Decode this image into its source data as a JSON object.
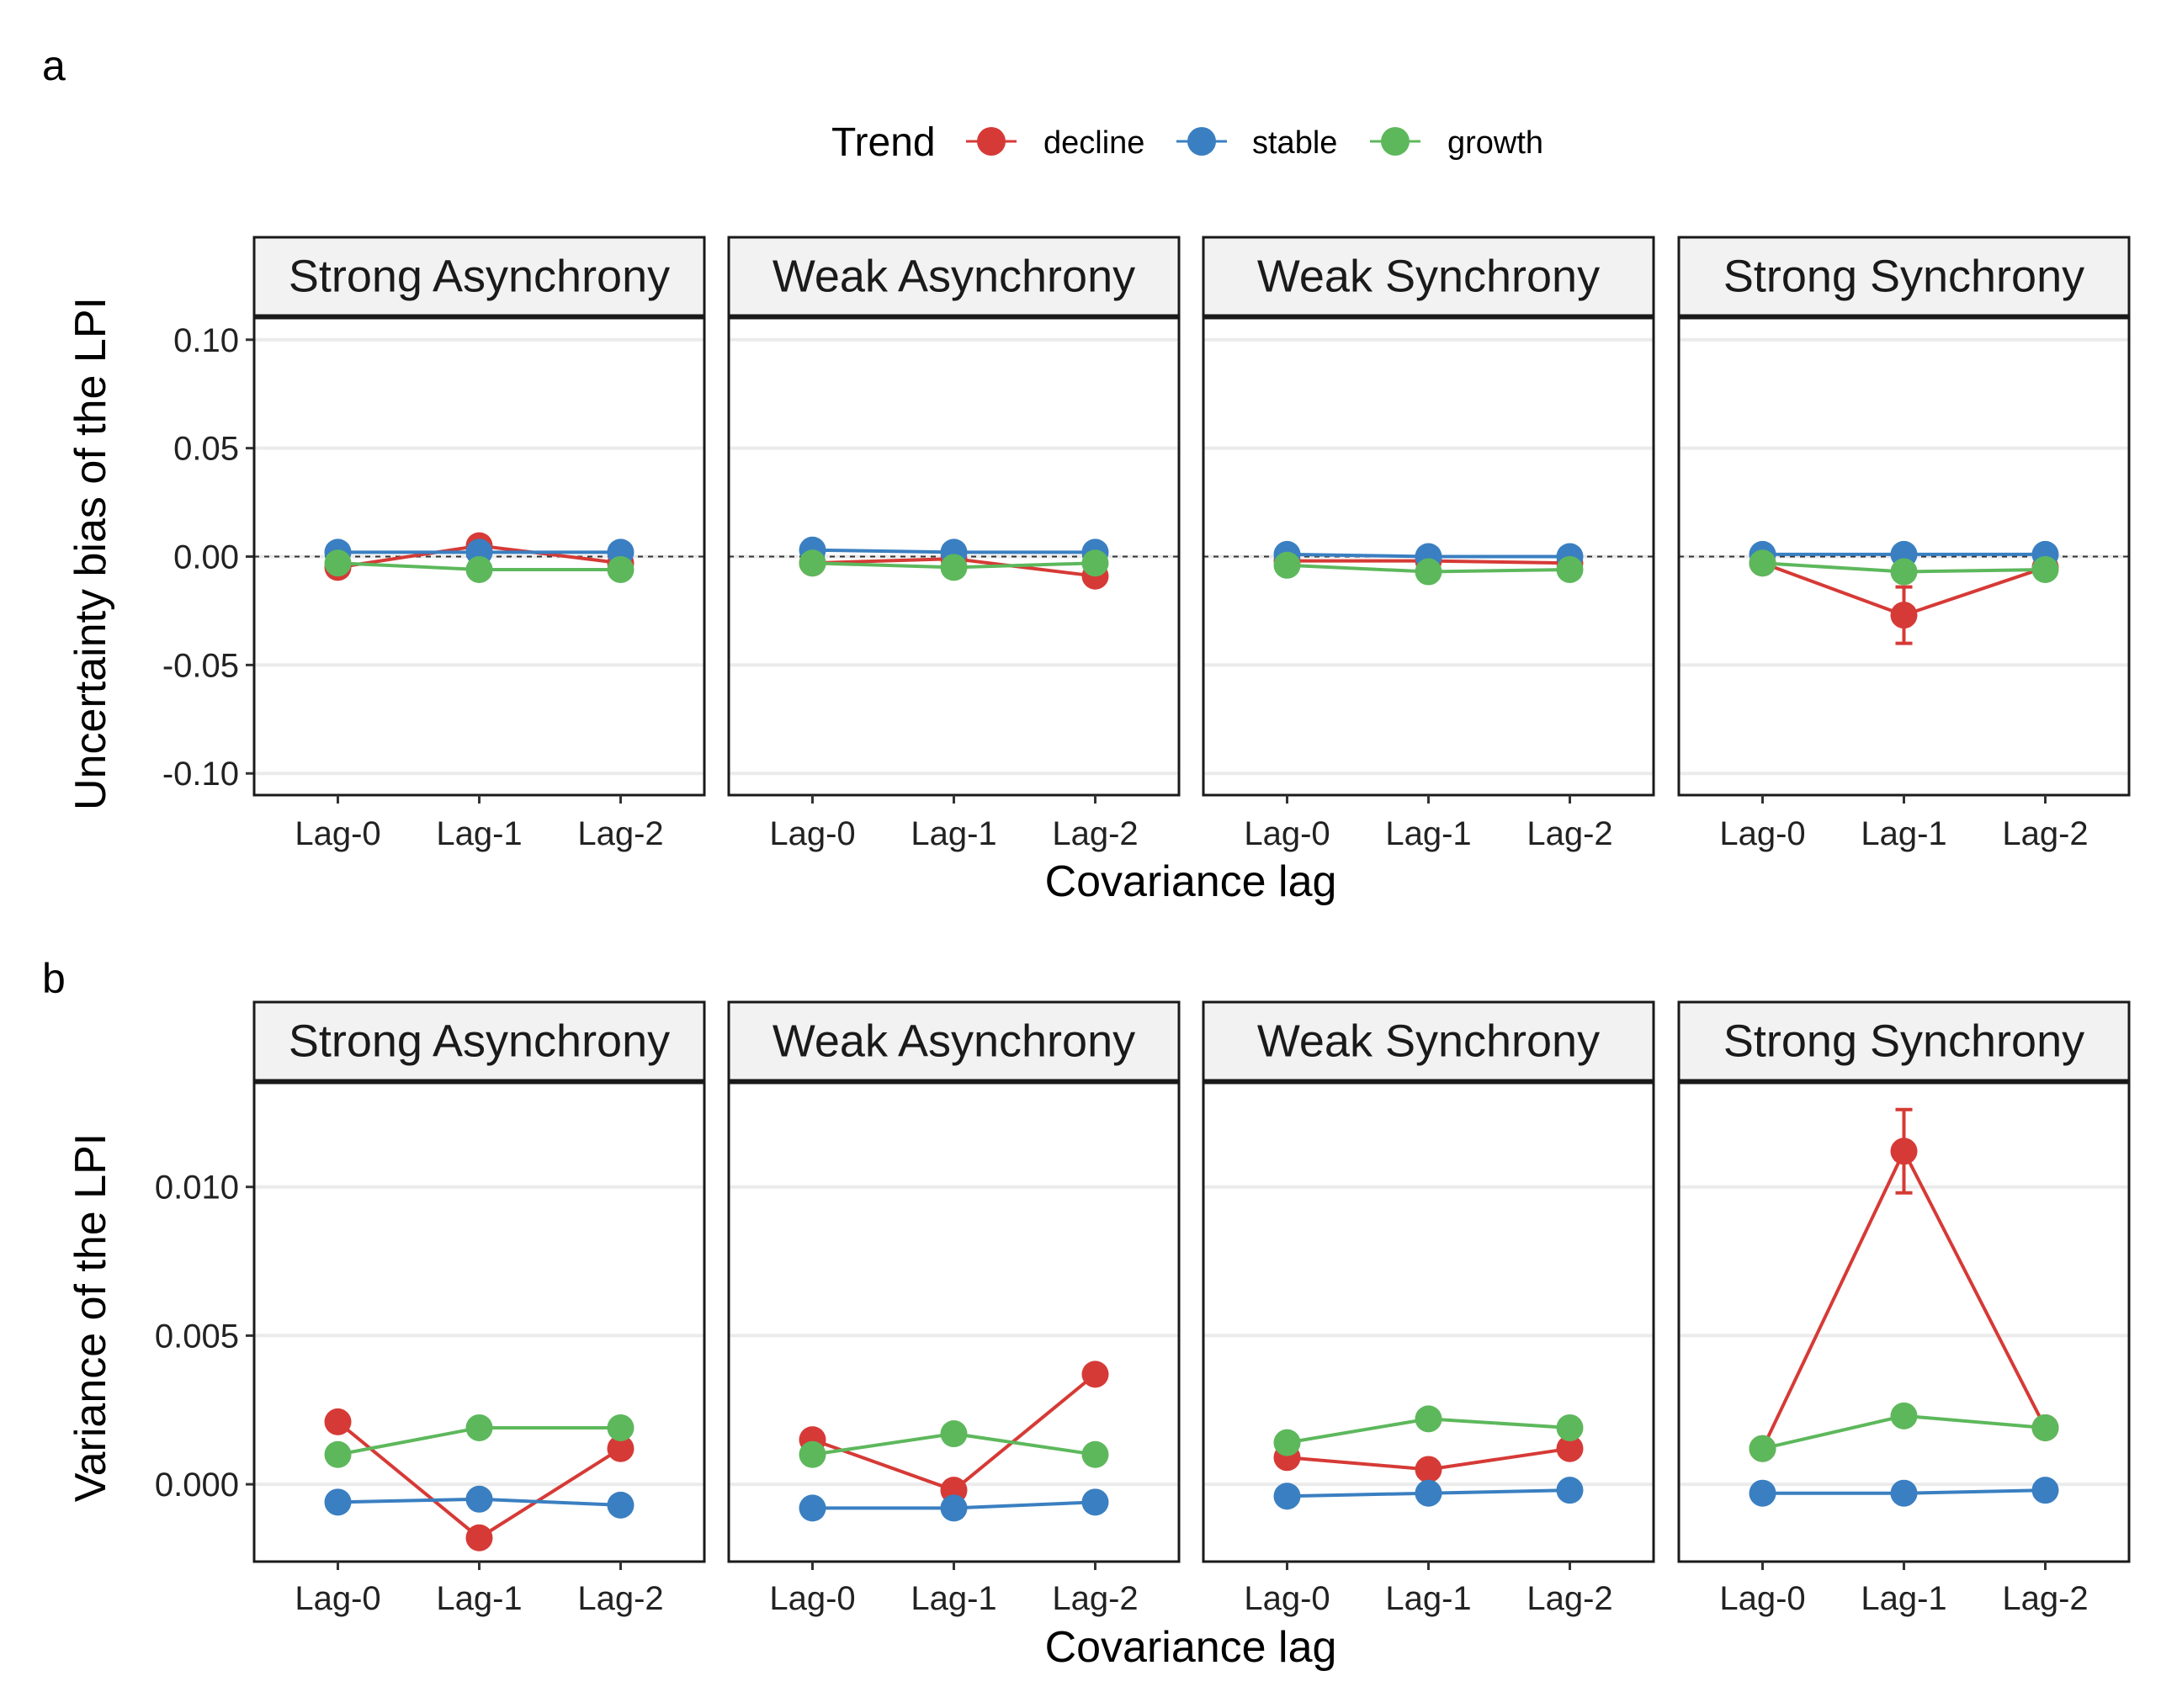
{
  "panels": [
    {
      "letter": "a",
      "ylabel": "Uncertainty bias of the LPI",
      "xlabel": "Covariance lag"
    },
    {
      "letter": "b",
      "ylabel": "Variance of the LPI",
      "xlabel": "Covariance lag"
    }
  ],
  "legend": {
    "title": "Trend",
    "items": [
      {
        "label": "decline",
        "color": "#d63a36"
      },
      {
        "label": "stable",
        "color": "#3a7fc1"
      },
      {
        "label": "growth",
        "color": "#5db85c"
      }
    ]
  },
  "facets": [
    "Strong Asynchrony",
    "Weak Asynchrony",
    "Weak Synchrony",
    "Strong Synchrony"
  ],
  "chart_data": [
    {
      "type": "line",
      "panel": "a",
      "xlabel": "Covariance lag",
      "ylabel": "Uncertainty bias of the LPI",
      "categories": [
        "Lag-0",
        "Lag-1",
        "Lag-2"
      ],
      "ylim": [
        -0.11,
        0.11
      ],
      "yticks": [
        -0.1,
        -0.05,
        0.0,
        0.05,
        0.1
      ],
      "ytick_labels": [
        "-0.10",
        "-0.05",
        "0.00",
        "0.05",
        "0.10"
      ],
      "reference_line": 0,
      "facets": [
        {
          "name": "Strong Asynchrony",
          "series": [
            {
              "name": "decline",
              "values": [
                -0.005,
                0.005,
                -0.003
              ]
            },
            {
              "name": "stable",
              "values": [
                0.002,
                0.002,
                0.002
              ]
            },
            {
              "name": "growth",
              "values": [
                -0.003,
                -0.006,
                -0.006
              ]
            }
          ]
        },
        {
          "name": "Weak Asynchrony",
          "series": [
            {
              "name": "decline",
              "values": [
                -0.003,
                -0.001,
                -0.009
              ]
            },
            {
              "name": "stable",
              "values": [
                0.003,
                0.002,
                0.002
              ]
            },
            {
              "name": "growth",
              "values": [
                -0.003,
                -0.005,
                -0.003
              ]
            }
          ]
        },
        {
          "name": "Weak Synchrony",
          "series": [
            {
              "name": "decline",
              "values": [
                -0.002,
                -0.002,
                -0.003
              ]
            },
            {
              "name": "stable",
              "values": [
                0.001,
                0.0,
                0.0
              ]
            },
            {
              "name": "growth",
              "values": [
                -0.004,
                -0.007,
                -0.006
              ]
            }
          ]
        },
        {
          "name": "Strong Synchrony",
          "series": [
            {
              "name": "decline",
              "values": [
                -0.003,
                -0.027,
                -0.005
              ],
              "error": [
                0,
                0.013,
                0
              ]
            },
            {
              "name": "stable",
              "values": [
                0.001,
                0.001,
                0.001
              ]
            },
            {
              "name": "growth",
              "values": [
                -0.003,
                -0.007,
                -0.006
              ]
            }
          ]
        }
      ]
    },
    {
      "type": "line",
      "panel": "b",
      "xlabel": "Covariance lag",
      "ylabel": "Variance of the LPI",
      "categories": [
        "Lag-0",
        "Lag-1",
        "Lag-2"
      ],
      "ylim": [
        -0.0026,
        0.0135
      ],
      "yticks": [
        0.0,
        0.005,
        0.01
      ],
      "ytick_labels": [
        "0.000",
        "0.005",
        "0.010"
      ],
      "facets": [
        {
          "name": "Strong Asynchrony",
          "series": [
            {
              "name": "decline",
              "values": [
                0.0021,
                -0.0018,
                0.0012
              ]
            },
            {
              "name": "stable",
              "values": [
                -0.0006,
                -0.0005,
                -0.0007
              ]
            },
            {
              "name": "growth",
              "values": [
                0.001,
                0.0019,
                0.0019
              ]
            }
          ]
        },
        {
          "name": "Weak Asynchrony",
          "series": [
            {
              "name": "decline",
              "values": [
                0.0015,
                -0.0002,
                0.0037
              ]
            },
            {
              "name": "stable",
              "values": [
                -0.0008,
                -0.0008,
                -0.0006
              ]
            },
            {
              "name": "growth",
              "values": [
                0.001,
                0.0017,
                0.001
              ]
            }
          ]
        },
        {
          "name": "Weak Synchrony",
          "series": [
            {
              "name": "decline",
              "values": [
                0.0009,
                0.0005,
                0.0012
              ]
            },
            {
              "name": "stable",
              "values": [
                -0.0004,
                -0.0003,
                -0.0002
              ]
            },
            {
              "name": "growth",
              "values": [
                0.0014,
                0.0022,
                0.0019
              ]
            }
          ]
        },
        {
          "name": "Strong Synchrony",
          "series": [
            {
              "name": "decline",
              "values": [
                0.0012,
                0.0112,
                0.0019
              ],
              "error": [
                0,
                0.0014,
                0
              ]
            },
            {
              "name": "stable",
              "values": [
                -0.0003,
                -0.0003,
                -0.0002
              ]
            },
            {
              "name": "growth",
              "values": [
                0.0012,
                0.0023,
                0.0019
              ]
            }
          ]
        }
      ]
    }
  ]
}
